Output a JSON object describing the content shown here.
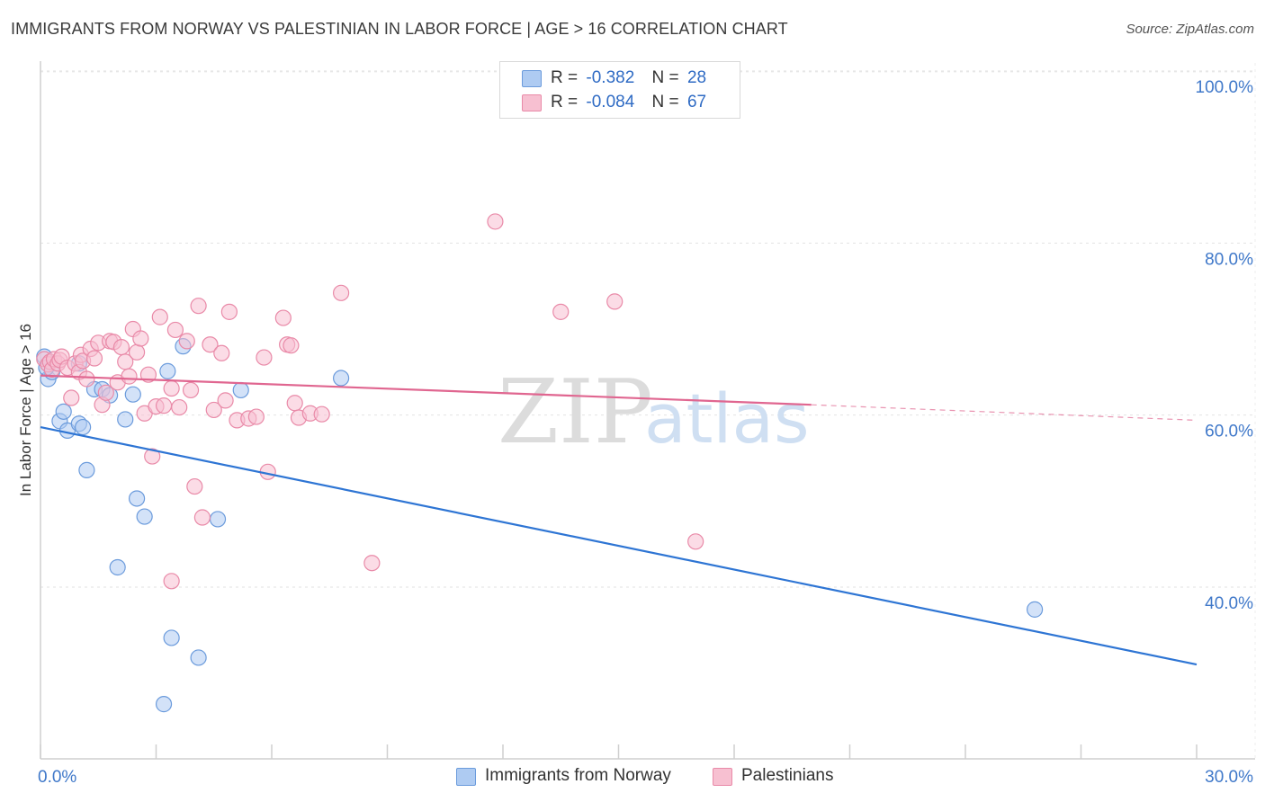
{
  "title": "IMMIGRANTS FROM NORWAY VS PALESTINIAN IN LABOR FORCE | AGE > 16 CORRELATION CHART",
  "source": "Source: ZipAtlas.com",
  "watermark": {
    "zip": "ZIP",
    "atlas": "atlas"
  },
  "legend": {
    "series": [
      {
        "r_label": "R =",
        "r_value": "-0.382",
        "n_label": "N =",
        "n_value": "28",
        "color": "#aecbf2",
        "border": "#6b9bdc"
      },
      {
        "r_label": "R =",
        "r_value": "-0.084",
        "n_label": "N =",
        "n_value": "67",
        "color": "#f7c0d1",
        "border": "#e98aa8"
      }
    ]
  },
  "bottom_legend": [
    {
      "label": "Immigrants from Norway",
      "color": "#aecbf2",
      "border": "#6b9bdc"
    },
    {
      "label": "Palestinians",
      "color": "#f7c0d1",
      "border": "#e98aa8"
    }
  ],
  "chart_data": {
    "type": "scatter",
    "title": "IMMIGRANTS FROM NORWAY VS PALESTINIAN IN LABOR FORCE | AGE > 16 CORRELATION CHART",
    "xlabel": "",
    "ylabel": "In Labor Force | Age > 16",
    "xlim": [
      0,
      30
    ],
    "ylim": [
      20,
      104
    ],
    "x_tick_labels": [
      "0.0%",
      "30.0%"
    ],
    "y_ticks": [
      40,
      60,
      80,
      100
    ],
    "y_tick_labels": [
      "40.0%",
      "60.0%",
      "80.0%",
      "100.0%"
    ],
    "grid": true,
    "series": [
      {
        "name": "Immigrants from Norway",
        "color": "#6b9bdc",
        "fill": "#aecbf2",
        "trend": {
          "x": [
            0,
            30
          ],
          "y": [
            58.6,
            31.0
          ],
          "color": "#2e75d4"
        },
        "points": [
          [
            0.1,
            66.8
          ],
          [
            0.2,
            64.2
          ],
          [
            0.3,
            65.0
          ],
          [
            0.5,
            59.3
          ],
          [
            0.6,
            60.4
          ],
          [
            0.7,
            58.2
          ],
          [
            1.0,
            59.0
          ],
          [
            1.1,
            58.6
          ],
          [
            1.2,
            53.6
          ],
          [
            1.0,
            66.0
          ],
          [
            1.4,
            63.0
          ],
          [
            1.6,
            63.0
          ],
          [
            1.8,
            62.3
          ],
          [
            2.2,
            59.5
          ],
          [
            2.4,
            62.4
          ],
          [
            2.5,
            50.3
          ],
          [
            2.7,
            48.2
          ],
          [
            2.0,
            42.3
          ],
          [
            3.3,
            65.1
          ],
          [
            3.7,
            68.0
          ],
          [
            5.2,
            62.9
          ],
          [
            7.8,
            64.3
          ],
          [
            4.6,
            47.9
          ],
          [
            3.4,
            34.1
          ],
          [
            4.1,
            31.8
          ],
          [
            3.2,
            26.4
          ],
          [
            25.8,
            37.4
          ],
          [
            0.15,
            65.5
          ]
        ]
      },
      {
        "name": "Palestinians",
        "color": "#e98aa8",
        "fill": "#f7c0d1",
        "trend": {
          "x": [
            0,
            20
          ],
          "y": [
            64.6,
            61.2
          ],
          "dashed_to": [
            30,
            59.4
          ],
          "color": "#e06690"
        },
        "points": [
          [
            0.1,
            66.5
          ],
          [
            0.2,
            65.9
          ],
          [
            0.25,
            66.2
          ],
          [
            0.3,
            65.3
          ],
          [
            0.35,
            66.5
          ],
          [
            0.45,
            66.0
          ],
          [
            0.5,
            66.4
          ],
          [
            0.55,
            66.8
          ],
          [
            0.7,
            65.5
          ],
          [
            0.8,
            62.0
          ],
          [
            0.9,
            66.0
          ],
          [
            1.0,
            65.0
          ],
          [
            1.05,
            67.0
          ],
          [
            1.1,
            66.3
          ],
          [
            1.2,
            64.2
          ],
          [
            1.3,
            67.7
          ],
          [
            1.4,
            66.6
          ],
          [
            1.5,
            68.4
          ],
          [
            1.6,
            61.2
          ],
          [
            1.7,
            62.6
          ],
          [
            1.8,
            68.6
          ],
          [
            1.9,
            68.5
          ],
          [
            2.0,
            63.8
          ],
          [
            2.1,
            67.9
          ],
          [
            2.2,
            66.2
          ],
          [
            2.3,
            64.5
          ],
          [
            2.4,
            70.0
          ],
          [
            2.5,
            67.3
          ],
          [
            2.6,
            68.9
          ],
          [
            2.7,
            60.2
          ],
          [
            2.8,
            64.7
          ],
          [
            2.9,
            55.2
          ],
          [
            3.0,
            61.0
          ],
          [
            3.1,
            71.4
          ],
          [
            3.2,
            61.1
          ],
          [
            3.4,
            63.1
          ],
          [
            3.5,
            69.9
          ],
          [
            3.6,
            60.9
          ],
          [
            3.8,
            68.6
          ],
          [
            3.9,
            62.9
          ],
          [
            4.0,
            51.7
          ],
          [
            4.1,
            72.7
          ],
          [
            4.2,
            48.1
          ],
          [
            4.4,
            68.2
          ],
          [
            3.4,
            40.7
          ],
          [
            4.5,
            60.6
          ],
          [
            4.7,
            67.2
          ],
          [
            4.8,
            61.7
          ],
          [
            4.9,
            72.0
          ],
          [
            5.1,
            59.4
          ],
          [
            5.4,
            59.6
          ],
          [
            5.6,
            59.8
          ],
          [
            5.8,
            66.7
          ],
          [
            5.9,
            53.4
          ],
          [
            6.3,
            71.3
          ],
          [
            6.4,
            68.2
          ],
          [
            6.5,
            68.1
          ],
          [
            6.6,
            61.4
          ],
          [
            6.7,
            59.7
          ],
          [
            7.0,
            60.2
          ],
          [
            7.3,
            60.1
          ],
          [
            7.8,
            74.2
          ],
          [
            8.6,
            42.8
          ],
          [
            11.8,
            82.5
          ],
          [
            13.5,
            72.0
          ],
          [
            14.9,
            73.2
          ],
          [
            17.0,
            45.3
          ]
        ]
      }
    ]
  }
}
